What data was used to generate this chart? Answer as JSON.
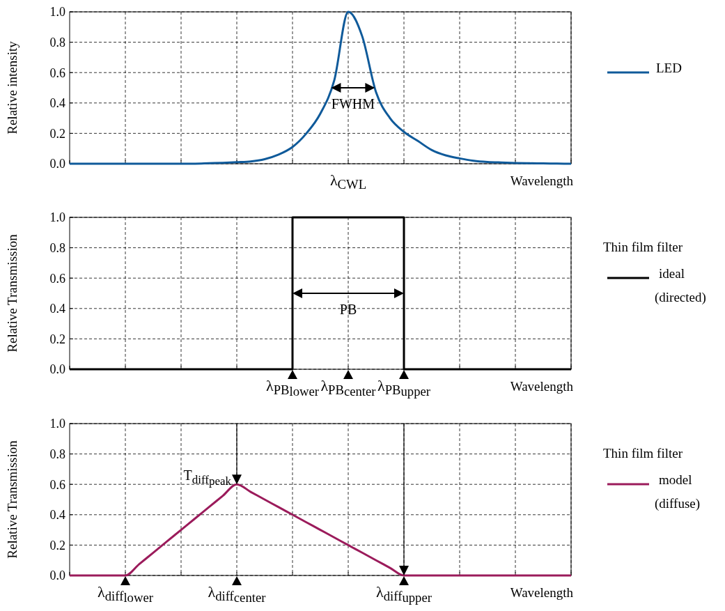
{
  "chart_data": [
    {
      "type": "line",
      "ylabel": "Relative intensity",
      "xlabel": "Wavelength",
      "grid": true,
      "legend": "right",
      "categories": [
        null,
        null,
        null,
        null,
        null,
        null,
        null,
        null,
        null,
        null,
        null,
        null,
        null,
        null,
        null,
        null,
        null,
        null,
        null,
        null,
        "λ$_{CWL}$",
        null,
        null,
        null,
        null,
        null,
        null,
        null,
        null,
        null,
        null,
        null,
        null,
        null,
        null,
        null,
        null
      ],
      "series": [
        {
          "name": "LED",
          "color": "#0f5a9a",
          "values": [
            0,
            0,
            0,
            0,
            0,
            0,
            0,
            0,
            0,
            0,
            0.003,
            0.006,
            0.01,
            0.015,
            0.03,
            0.06,
            0.11,
            0.2,
            0.33,
            0.55,
            1.0,
            0.84,
            0.47,
            0.3,
            0.21,
            0.15,
            0.09,
            0.055,
            0.035,
            0.02,
            0.012,
            0.008,
            0.005,
            0.003,
            0.002,
            0.001,
            0
          ]
        }
      ],
      "ylim": [
        0,
        1
      ],
      "yticks": [
        {
          "value": 0,
          "label": "0.0"
        },
        {
          "value": 0.2,
          "label": "0.2"
        },
        {
          "value": 0.4,
          "label": "0.4"
        },
        {
          "value": 0.6,
          "label": "0.6"
        },
        {
          "value": 0.8,
          "label": "0.8"
        },
        {
          "value": 1,
          "label": "1.0"
        }
      ],
      "annotations": [
        "FWHM"
      ]
    },
    {
      "type": "step",
      "ylabel": "Relative Transmission",
      "xlabel": "Wavelength",
      "grid": true,
      "legend": "right",
      "legend_title": "Thin film filter",
      "categories": [
        null,
        null,
        null,
        null,
        null,
        null,
        null,
        null,
        null,
        null,
        null,
        null,
        null,
        null,
        null,
        null,
        "λ$_{PB}$$_{lower}$",
        null,
        null,
        null,
        "λ$_{PB}$$_{center}$",
        null,
        null,
        null,
        "λ$_{PB}$$_{upper}$",
        null,
        null,
        null,
        null,
        null,
        null,
        null,
        null,
        null,
        null,
        null,
        null
      ],
      "series": [
        {
          "name": "ideal (directed)",
          "color": "#000000",
          "values": [
            0,
            0,
            0,
            0,
            0,
            0,
            0,
            0,
            0,
            0,
            0,
            0,
            0,
            0,
            0,
            0,
            1,
            1,
            1,
            1,
            1,
            1,
            1,
            1,
            0,
            0,
            0,
            0,
            0,
            0,
            0,
            0,
            0,
            0,
            0,
            0,
            0
          ]
        }
      ],
      "ylim": [
        0,
        1
      ],
      "yticks": [
        {
          "value": 0,
          "label": "0.0"
        },
        {
          "value": 0.2,
          "label": "0.2"
        },
        {
          "value": 0.4,
          "label": "0.4"
        },
        {
          "value": 0.6,
          "label": "0.6"
        },
        {
          "value": 0.8,
          "label": "0.8"
        },
        {
          "value": 1,
          "label": "1.0"
        }
      ],
      "annotations": [
        "PB"
      ]
    },
    {
      "type": "line",
      "ylabel": "Relative Transmission",
      "xlabel": "Wavelength",
      "grid": true,
      "legend": "right",
      "legend_title": "Thin film filter",
      "categories": [
        null,
        null,
        null,
        null,
        "λ$_{diff}$$_{lower}$",
        null,
        null,
        null,
        null,
        null,
        null,
        null,
        "λ$_{diff}$$_{center}$",
        null,
        null,
        null,
        null,
        null,
        null,
        null,
        null,
        null,
        null,
        null,
        "λ$_{diff}$$_{upper}$",
        null,
        null,
        null,
        null,
        null,
        null,
        null,
        null,
        null,
        null,
        null,
        null
      ],
      "series": [
        {
          "name": "model (diffuse)",
          "color": "#9b1b5b",
          "values": [
            0,
            0,
            0,
            0,
            0,
            0.075,
            0.15,
            0.225,
            0.3,
            0.375,
            0.45,
            0.525,
            0.6,
            0.55,
            0.5,
            0.45,
            0.4,
            0.35,
            0.3,
            0.25,
            0.2,
            0.15,
            0.1,
            0.05,
            0,
            0,
            0,
            0,
            0,
            0,
            0,
            0,
            0,
            0,
            0,
            0,
            0
          ]
        }
      ],
      "ylim": [
        0,
        1
      ],
      "yticks": [
        {
          "value": 0,
          "label": "0.0"
        },
        {
          "value": 0.2,
          "label": "0.2"
        },
        {
          "value": 0.4,
          "label": "0.4"
        },
        {
          "value": 0.6,
          "label": "0.6"
        },
        {
          "value": 0.8,
          "label": "0.8"
        },
        {
          "value": 1,
          "label": "1.0"
        }
      ],
      "annotations": [
        {
          "text": "T$_{diff}$$_{peak}$",
          "x": "λ$_{diff}$$_{center}$",
          "y": 0.6
        }
      ]
    }
  ]
}
